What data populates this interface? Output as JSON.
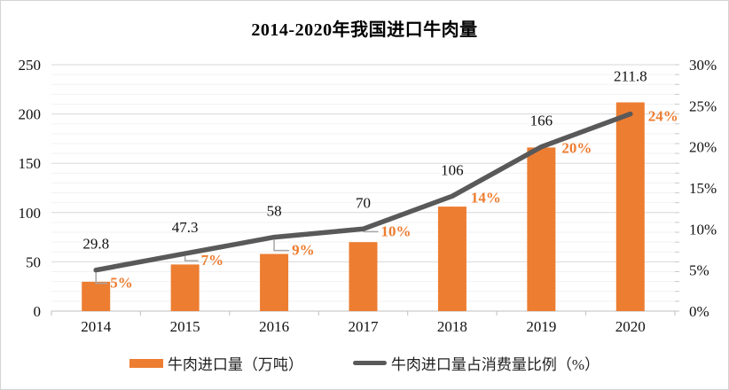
{
  "chart": {
    "legend": [
      {
        "label": "牛肉进口量（万吨）",
        "type": "bar"
      },
      {
        "label": "牛肉进口量占消费量比例（%）",
        "type": "line"
      }
    ]
  },
  "chart_data": {
    "type": "bar+line combo",
    "title": "2014-2020年我国进口牛肉量",
    "categories": [
      "2014",
      "2015",
      "2016",
      "2017",
      "2018",
      "2019",
      "2020"
    ],
    "series": [
      {
        "name": "牛肉进口量（万吨）",
        "type": "bar",
        "axis": "left",
        "color": "#ED7D31",
        "values": [
          29.8,
          47.3,
          58,
          70,
          106,
          166,
          211.8
        ]
      },
      {
        "name": "牛肉进口量占消费量比例（%）",
        "type": "line",
        "axis": "right",
        "color": "#595959",
        "label_color": "#ED7D31",
        "label_suffix": "%",
        "values": [
          5,
          7,
          9,
          10,
          14,
          20,
          24
        ]
      }
    ],
    "left_axis": {
      "min": 0,
      "max": 250,
      "step": 50,
      "minor_step": 10,
      "ticks": [
        "0",
        "50",
        "100",
        "150",
        "200",
        "250"
      ]
    },
    "right_axis": {
      "min": 0,
      "max": 30,
      "step": 5,
      "ticks": [
        "0%",
        "5%",
        "10%",
        "15%",
        "20%",
        "25%",
        "30%"
      ]
    },
    "grid": {
      "major": true,
      "minor": true
    },
    "legend_position": "bottom"
  }
}
